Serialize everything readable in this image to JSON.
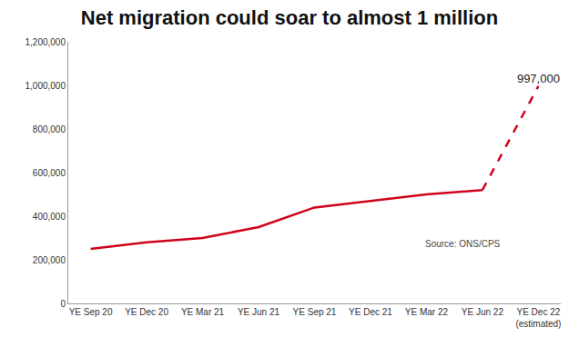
{
  "chart_data": {
    "type": "line",
    "title": "Net migration could soar to almost 1 million",
    "categories": [
      "YE Sep 20",
      "YE Dec 20",
      "YE Mar 21",
      "YE Jun 21",
      "YE Sep 21",
      "YE Dec 21",
      "YE Mar 22",
      "YE Jun 22",
      "YE Dec 22 (estimated)"
    ],
    "series": [
      {
        "color": "#d0021b",
        "line_style": "solid",
        "values": [
          250000,
          280000,
          300000,
          350000,
          440000,
          470000,
          500000,
          520000,
          null
        ]
      },
      {
        "color": "#d0021b",
        "line_style": "dash",
        "values": [
          null,
          null,
          null,
          null,
          null,
          null,
          null,
          520000,
          997000
        ],
        "value_labels": [
          null,
          null,
          null,
          null,
          null,
          null,
          null,
          null,
          "997,000"
        ]
      }
    ],
    "ylim": [
      0,
      1200000
    ],
    "yticks": [
      0,
      {
        "value": 200000,
        "label": "200,000"
      },
      {
        "value": 400000,
        "label": "400,000"
      },
      {
        "value": 600000,
        "label": "600,000"
      },
      {
        "value": 800000,
        "label": "800,000"
      },
      {
        "value": 1000000,
        "label": "1,000,000"
      },
      {
        "value": 1200000,
        "label": "1,200,000"
      }
    ],
    "grid": false,
    "annotations": [
      {
        "text": "Source: ONS/CPS"
      }
    ]
  }
}
